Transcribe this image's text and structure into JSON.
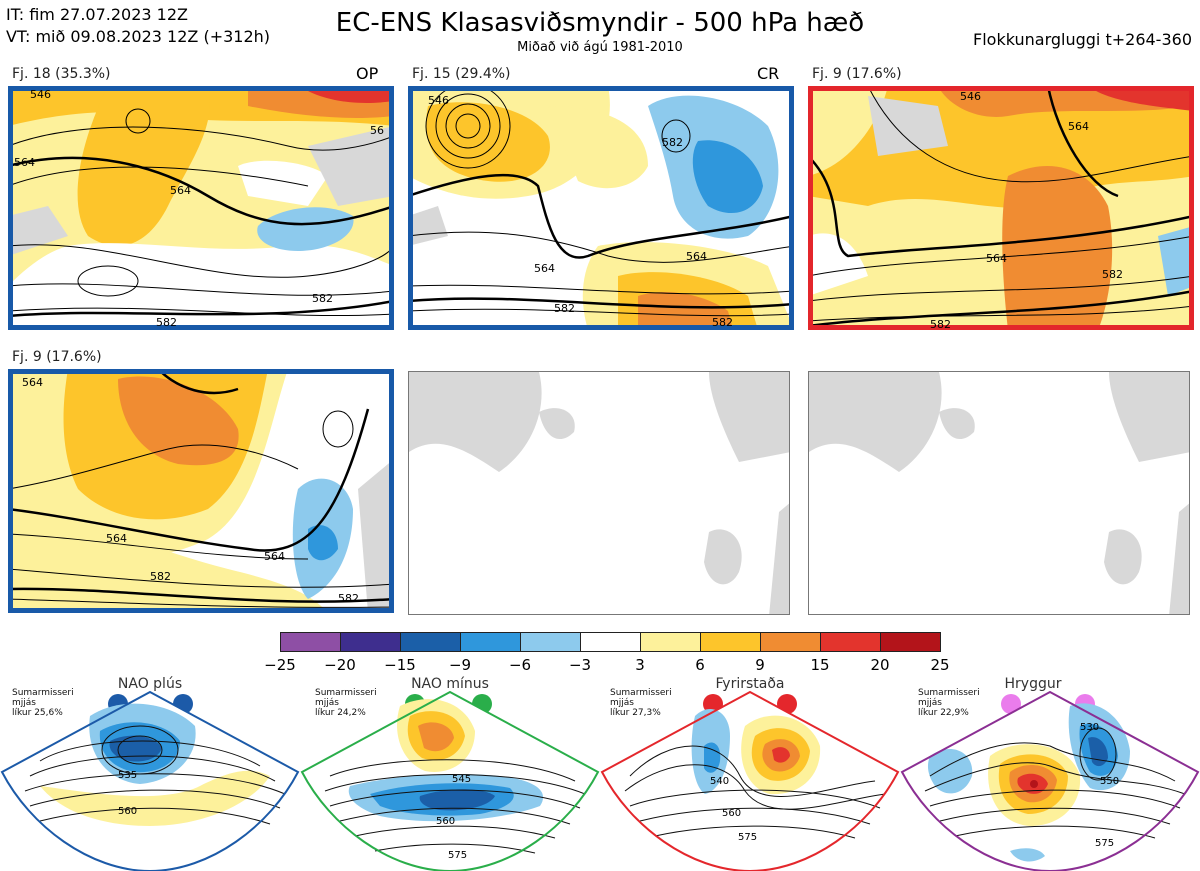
{
  "header": {
    "it_line": "IT: fim 27.07.2023 12Z",
    "vt_line": "VT: mið 09.08.2023 12Z  (+312h)",
    "title": "EC-ENS Klasasviðsmyndir - 500 hPa hæð",
    "subtitle": "Miðað við ágú 1981-2010",
    "window": "Flokkunargluggi t+264-360"
  },
  "clusters": [
    {
      "label": "Fj. 18 (35.3%)",
      "tag": "OP",
      "contours": [
        "546",
        "564",
        "582",
        "56",
        "564",
        "582"
      ],
      "frame": "blue"
    },
    {
      "label": "Fj. 15 (29.4%)",
      "tag": "CR",
      "contours": [
        "546",
        "564",
        "582",
        "582",
        "564",
        "582"
      ],
      "frame": "blue"
    },
    {
      "label": "Fj. 9 (17.6%)",
      "tag": "",
      "contours": [
        "546",
        "564",
        "582",
        "564",
        "582"
      ],
      "frame": "red"
    },
    {
      "label": "Fj. 9 (17.6%)",
      "tag": "",
      "contours": [
        "564",
        "564",
        "582",
        "582",
        "564"
      ],
      "frame": "blue"
    }
  ],
  "colorbar": {
    "ticks": [
      "−25",
      "−20",
      "−15",
      "−9",
      "−6",
      "−3",
      "3",
      "6",
      "9",
      "15",
      "20",
      "25"
    ],
    "colors": [
      "#8e4fa5",
      "#3e2e8e",
      "#1b5fa8",
      "#2f97dc",
      "#8dcaed",
      "#ffffff",
      "#fdf19b",
      "#fdc52b",
      "#f08c32",
      "#e3342d",
      "#b3141a"
    ]
  },
  "regimes": [
    {
      "name": "NAO plús",
      "season": "Sumarmisseri",
      "mean": "mjjás",
      "prob": "líkur 25,6%",
      "dot_color": "#1c5aa8",
      "frame_color": "#1c5aa8",
      "contours": [
        "535",
        "560"
      ]
    },
    {
      "name": "NAO mínus",
      "season": "Sumarmisseri",
      "mean": "mjjás",
      "prob": "líkur 24,2%",
      "dot_color": "#2aae4a",
      "frame_color": "#2aae4a",
      "contours": [
        "545",
        "560",
        "575"
      ]
    },
    {
      "name": "Fyrirstaða",
      "season": "Sumarmisseri",
      "mean": "mjjás",
      "prob": "líkur 27,3%",
      "dot_color": "#e4272c",
      "frame_color": "#e4272c",
      "contours": [
        "540",
        "560",
        "575"
      ]
    },
    {
      "name": "Hryggur",
      "season": "Sumarmisseri",
      "mean": "mjjás",
      "prob": "líkur 22,9%",
      "dot_color": "#ea7cec",
      "frame_color": "#8b2f93",
      "contours": [
        "530",
        "550",
        "575"
      ]
    }
  ]
}
